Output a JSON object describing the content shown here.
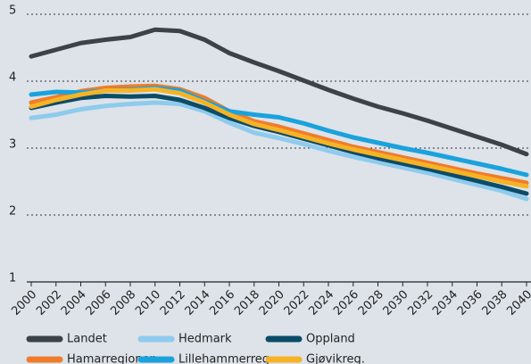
{
  "chart_data": {
    "type": "line",
    "x": [
      2000,
      2002,
      2004,
      2006,
      2008,
      2010,
      2012,
      2014,
      2016,
      2018,
      2020,
      2022,
      2024,
      2026,
      2028,
      2030,
      2032,
      2034,
      2036,
      2038,
      2040
    ],
    "series": [
      {
        "name": "Landet",
        "color": "#3c4347",
        "values": [
          4.37,
          4.47,
          4.57,
          4.62,
          4.66,
          4.77,
          4.75,
          4.62,
          4.42,
          4.28,
          4.15,
          4.01,
          3.87,
          3.74,
          3.62,
          3.52,
          3.41,
          3.29,
          3.17,
          3.05,
          2.91
        ]
      },
      {
        "name": "Hedmark",
        "color": "#8ecbee",
        "values": [
          3.45,
          3.5,
          3.58,
          3.63,
          3.66,
          3.68,
          3.66,
          3.55,
          3.38,
          3.23,
          3.15,
          3.06,
          2.96,
          2.87,
          2.79,
          2.71,
          2.63,
          2.54,
          2.45,
          2.36,
          2.24
        ]
      },
      {
        "name": "Oppland",
        "color": "#0b4c68",
        "values": [
          3.6,
          3.68,
          3.75,
          3.78,
          3.77,
          3.78,
          3.72,
          3.6,
          3.45,
          3.33,
          3.24,
          3.14,
          3.04,
          2.94,
          2.85,
          2.77,
          2.69,
          2.6,
          2.51,
          2.42,
          2.32
        ]
      },
      {
        "name": "Hamarregionen",
        "color": "#f07c2b",
        "values": [
          3.68,
          3.76,
          3.85,
          3.9,
          3.92,
          3.93,
          3.88,
          3.75,
          3.55,
          3.4,
          3.32,
          3.22,
          3.12,
          3.02,
          2.94,
          2.86,
          2.78,
          2.7,
          2.62,
          2.55,
          2.48
        ]
      },
      {
        "name": "Lillehammerreg.",
        "color": "#1aa2dd",
        "values": [
          3.8,
          3.84,
          3.83,
          3.86,
          3.87,
          3.9,
          3.86,
          3.7,
          3.55,
          3.5,
          3.46,
          3.37,
          3.26,
          3.16,
          3.08,
          3.0,
          2.93,
          2.85,
          2.77,
          2.69,
          2.6
        ]
      },
      {
        "name": "Gjøvikreg.",
        "color": "#f6b325",
        "values": [
          3.62,
          3.72,
          3.8,
          3.86,
          3.86,
          3.88,
          3.82,
          3.68,
          3.5,
          3.36,
          3.27,
          3.17,
          3.07,
          2.98,
          2.9,
          2.82,
          2.74,
          2.66,
          2.58,
          2.5,
          2.43
        ]
      }
    ],
    "xlim": [
      2000,
      2040
    ],
    "ylim": [
      1,
      5
    ],
    "yticks": [
      1,
      2,
      3,
      4,
      5
    ],
    "xticks": [
      2000,
      2002,
      2004,
      2006,
      2008,
      2010,
      2012,
      2014,
      2016,
      2018,
      2020,
      2022,
      2024,
      2026,
      2028,
      2030,
      2032,
      2034,
      2036,
      2038,
      2040
    ],
    "grid": true,
    "legend": "bottom"
  }
}
